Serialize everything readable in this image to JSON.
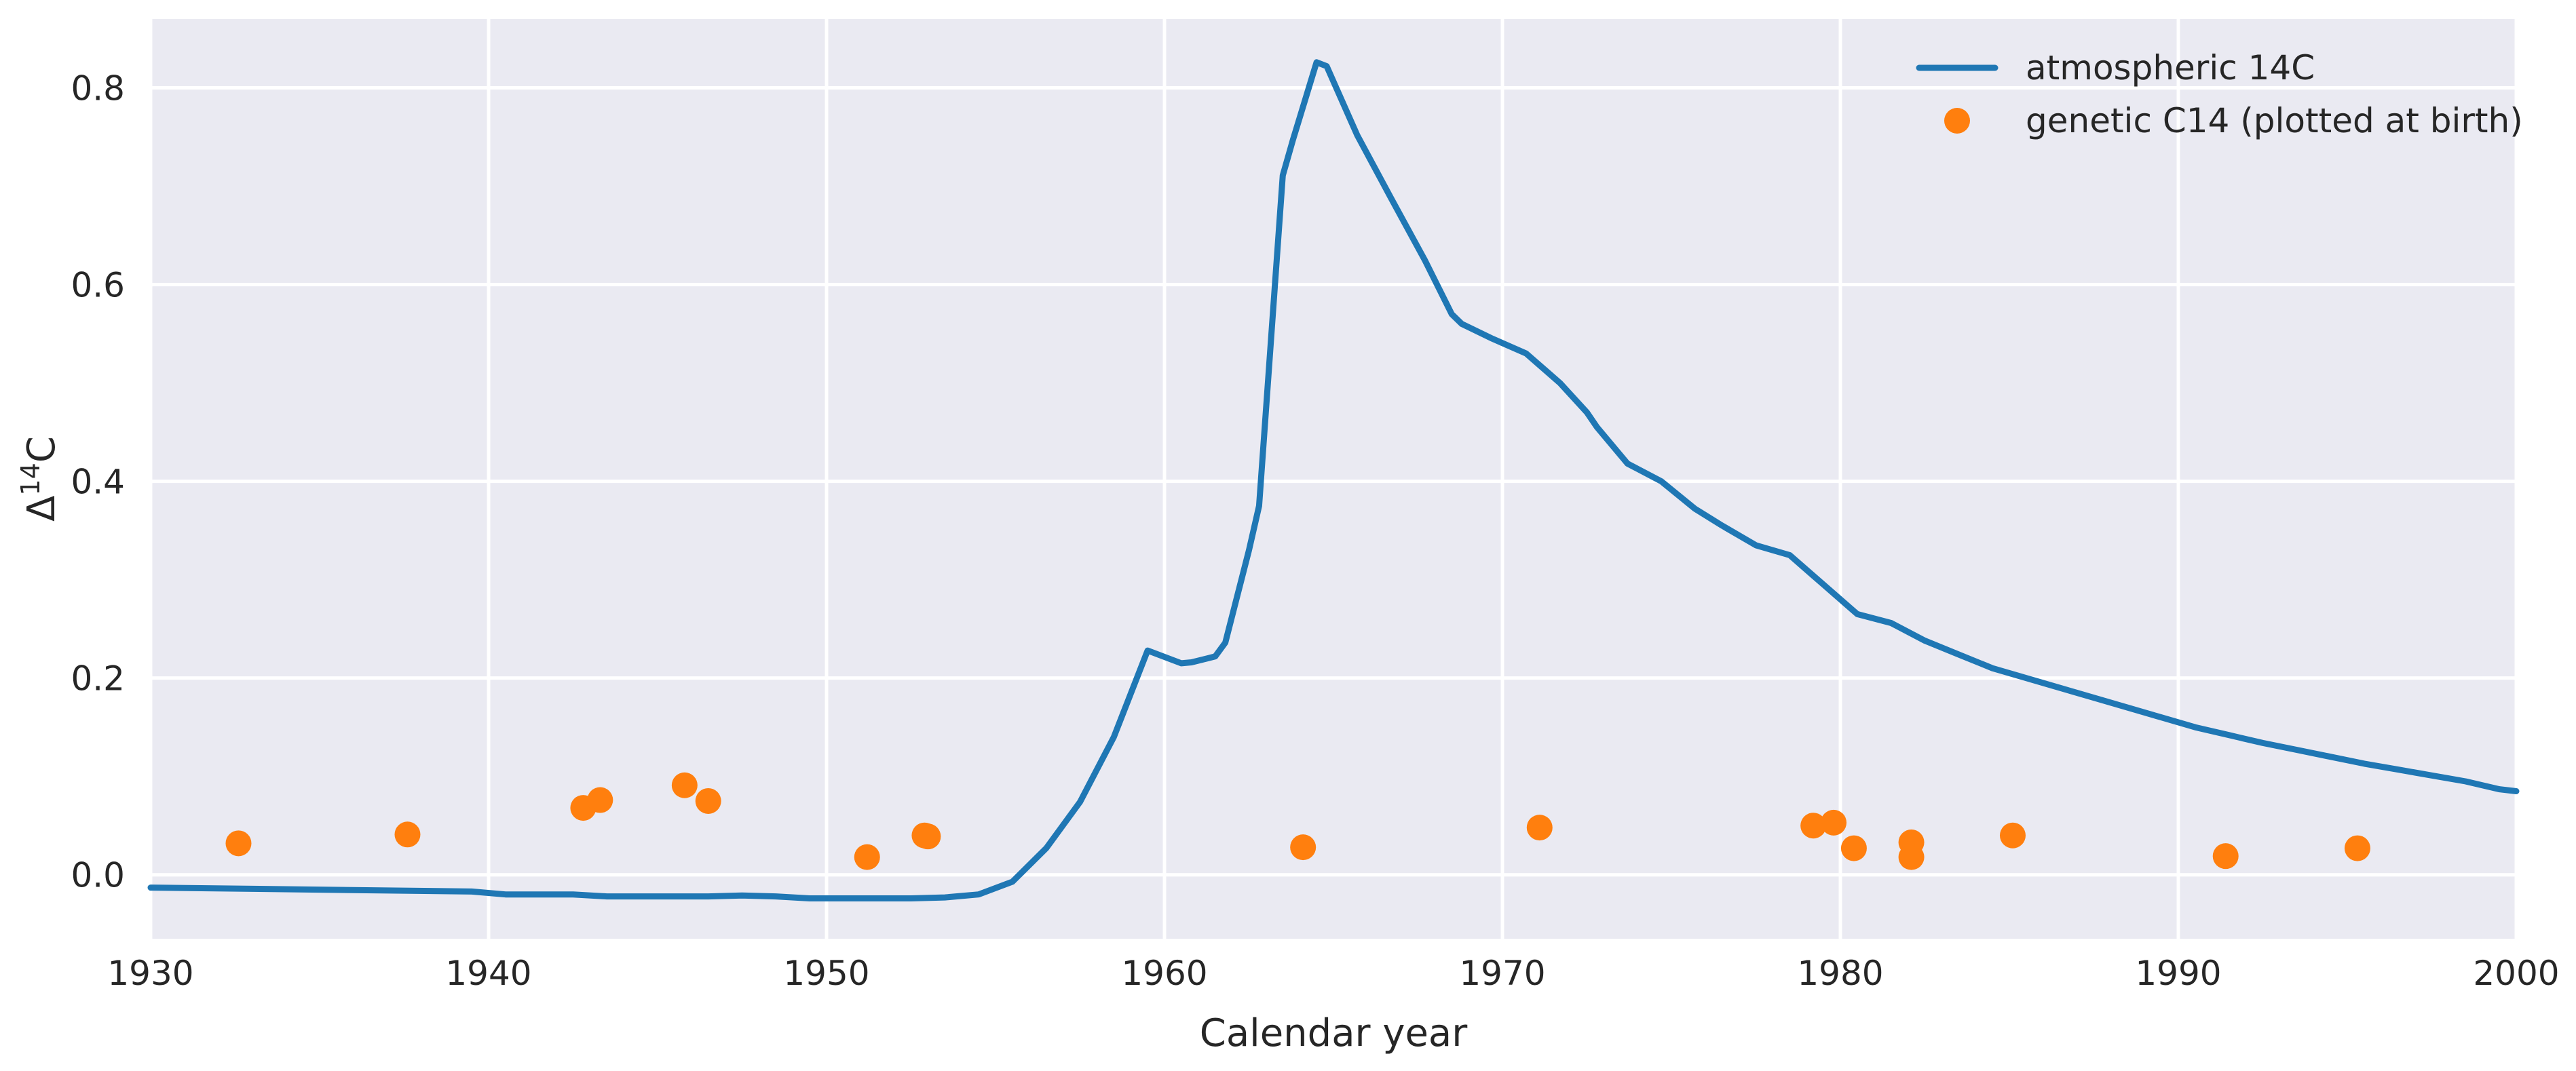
{
  "chart_data": {
    "type": "line",
    "xlabel": "Calendar year",
    "ylabel_base": "Δ",
    "ylabel_sup": "14",
    "ylabel_tail": "C",
    "xlim": [
      1930,
      2000
    ],
    "ylim": [
      -0.065,
      0.87
    ],
    "xticks": [
      1930,
      1940,
      1950,
      1960,
      1970,
      1980,
      1990,
      2000
    ],
    "yticks": [
      0.0,
      0.2,
      0.4,
      0.6,
      0.8
    ],
    "ytick_labels": [
      "0.0",
      "0.2",
      "0.4",
      "0.6",
      "0.8"
    ],
    "grid": true,
    "background": "#eaeaf2",
    "legend_position": "top-right",
    "series": [
      {
        "name": "atmospheric 14C",
        "kind": "line",
        "color": "#1f77b4",
        "x": [
          1930,
          1939.5,
          1940.5,
          1942.5,
          1943.5,
          1944.5,
          1946.5,
          1947.5,
          1948.5,
          1949.5,
          1950.5,
          1952.5,
          1953.5,
          1954.5,
          1955.5,
          1956.5,
          1957.5,
          1958.5,
          1959.5,
          1960.5,
          1960.8,
          1961.5,
          1961.8,
          1962.5,
          1962.8,
          1963.5,
          1963.8,
          1964.5,
          1964.8,
          1965.7,
          1966.7,
          1967.7,
          1968.5,
          1968.8,
          1969.7,
          1970.7,
          1971.7,
          1972.5,
          1972.8,
          1973.7,
          1974.7,
          1975.7,
          1976.5,
          1977.5,
          1978.5,
          1979.5,
          1980.5,
          1981.5,
          1982.5,
          1983.5,
          1984.5,
          1985.5,
          1986.5,
          1987.5,
          1988.5,
          1989.5,
          1990.5,
          1991.5,
          1992.5,
          1993.5,
          1994.5,
          1995.5,
          1996.5,
          1997.5,
          1998.5,
          1999.5,
          2000
        ],
        "y": [
          -0.013,
          -0.017,
          -0.02,
          -0.02,
          -0.022,
          -0.022,
          -0.022,
          -0.021,
          -0.022,
          -0.024,
          -0.024,
          -0.024,
          -0.023,
          -0.02,
          -0.007,
          0.027,
          0.074,
          0.14,
          0.228,
          0.215,
          0.216,
          0.222,
          0.236,
          0.33,
          0.375,
          0.711,
          0.747,
          0.826,
          0.822,
          0.752,
          0.688,
          0.625,
          0.57,
          0.56,
          0.545,
          0.53,
          0.5,
          0.47,
          0.455,
          0.418,
          0.4,
          0.372,
          0.355,
          0.335,
          0.325,
          0.295,
          0.265,
          0.256,
          0.238,
          0.224,
          0.21,
          0.2,
          0.19,
          0.18,
          0.17,
          0.16,
          0.15,
          0.142,
          0.134,
          0.127,
          0.12,
          0.113,
          0.107,
          0.101,
          0.095,
          0.087,
          0.085
        ]
      },
      {
        "name": "genetic C14 (plotted at birth)",
        "kind": "scatter",
        "color": "#ff7f0e",
        "x": [
          1932.6,
          1937.6,
          1942.8,
          1943.3,
          1945.8,
          1946.5,
          1951.2,
          1952.9,
          1953.0,
          1964.1,
          1971.1,
          1979.2,
          1979.8,
          1980.4,
          1982.1,
          1982.1,
          1985.1,
          1991.4,
          1995.3
        ],
        "y": [
          0.032,
          0.041,
          0.068,
          0.076,
          0.091,
          0.075,
          0.018,
          0.04,
          0.039,
          0.028,
          0.048,
          0.05,
          0.053,
          0.027,
          0.033,
          0.018,
          0.04,
          0.019,
          0.027
        ]
      }
    ]
  }
}
